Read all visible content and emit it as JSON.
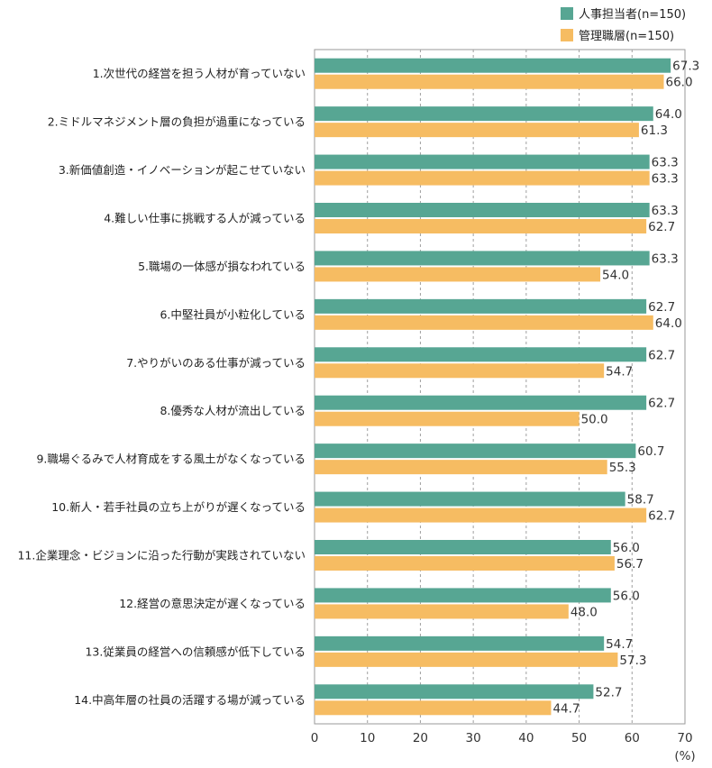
{
  "chart_data": {
    "type": "bar",
    "orientation": "horizontal",
    "unit_label": "(%)",
    "xlim": [
      0,
      70
    ],
    "x_ticks": [
      "0",
      "10",
      "20",
      "30",
      "40",
      "50",
      "60",
      "70"
    ],
    "grid": true,
    "legend_position": "top-right",
    "categories": [
      "1.次世代の経営を担う人材が育っていない",
      "2.ミドルマネジメント層の負担が過重になっている",
      "3.新価値創造・イノベーションが起こせていない",
      "4.難しい仕事に挑戦する人が減っている",
      "5.職場の一体感が損なわれている",
      "6.中堅社員が小粒化している",
      "7.やりがいのある仕事が減っている",
      "8.優秀な人材が流出している",
      "9.職場ぐるみで人材育成をする風土がなくなっている",
      "10.新人・若手社員の立ち上がりが遅くなっている",
      "11.企業理念・ビジョンに沿った行動が実践されていない",
      "12.経営の意思決定が遅くなっている",
      "13.従業員の経営への信頼感が低下している",
      "14.中高年層の社員の活躍する場が減っている"
    ],
    "series": [
      {
        "name": "人事担当者(n=150)",
        "color": "#57a693",
        "values": [
          67.3,
          64.0,
          63.3,
          63.3,
          63.3,
          62.7,
          62.7,
          62.7,
          60.7,
          58.7,
          56.0,
          56.0,
          54.7,
          52.7
        ],
        "value_labels": [
          "67.3",
          "64.0",
          "63.3",
          "63.3",
          "63.3",
          "62.7",
          "62.7",
          "62.7",
          "60.7",
          "58.7",
          "56.0",
          "56.0",
          "54.7",
          "52.7"
        ]
      },
      {
        "name": "管理職層(n=150)",
        "color": "#f6bc62",
        "values": [
          66.0,
          61.3,
          63.3,
          62.7,
          54.0,
          64.0,
          54.7,
          50.0,
          55.3,
          62.7,
          56.7,
          48.0,
          57.3,
          44.7
        ],
        "value_labels": [
          "66.0",
          "61.3",
          "63.3",
          "62.7",
          "54.0",
          "64.0",
          "54.7",
          "50.0",
          "55.3",
          "62.7",
          "56.7",
          "48.0",
          "57.3",
          "44.7"
        ]
      }
    ]
  }
}
